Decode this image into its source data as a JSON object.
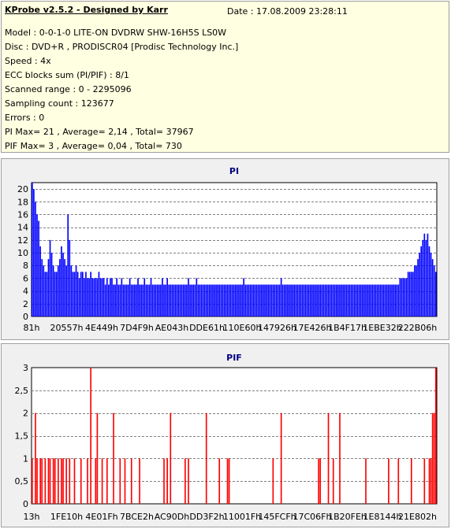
{
  "header": {
    "title": "KProbe v2.5.2 - Designed by Karr",
    "date": "Date : 17.08.2009 23:28:11",
    "lines": [
      "Model : 0-0-1-0 LITE-ON DVDRW SHW-16H5S  LS0W",
      "Disc : DVD+R , PRODISCR04 [Prodisc Technology Inc.]",
      "Speed : 4x",
      "ECC blocks sum (PI/PIF) : 8/1",
      "Scanned range : 0 - 2295096",
      "Sampling count : 123677",
      "Errors : 0",
      "PI Max= 21 , Average= 2,14 , Total= 37967",
      "PIF Max= 3 , Average= 0,04 , Total= 730"
    ]
  },
  "chart_data": [
    {
      "type": "bar",
      "title": "PI",
      "color": "#0000ff",
      "ylim": [
        0,
        21
      ],
      "yticks": [
        0,
        2,
        4,
        6,
        8,
        10,
        12,
        14,
        16,
        18,
        20
      ],
      "ytick_labels": [
        "0",
        "2",
        "4",
        "6",
        "8",
        "10",
        "12",
        "14",
        "16",
        "18",
        "20"
      ],
      "xtick_labels": [
        "81h",
        "20557h",
        "4E449h",
        "7D4F9h",
        "AE043h",
        "DDE61h",
        "110E60h",
        "147926h",
        "17E426h",
        "1B4F17h",
        "1EBE32h",
        "222B06h"
      ],
      "grid": true,
      "values": [
        21,
        20,
        18,
        16,
        15,
        11,
        9,
        8,
        7,
        7,
        9,
        12,
        10,
        8,
        7,
        7,
        8,
        9,
        11,
        10,
        9,
        8,
        16,
        12,
        8,
        7,
        7,
        8,
        7,
        6,
        7,
        7,
        6,
        7,
        6,
        6,
        7,
        6,
        6,
        6,
        6,
        7,
        6,
        6,
        6,
        5,
        6,
        5,
        6,
        6,
        5,
        5,
        6,
        5,
        5,
        6,
        5,
        5,
        5,
        5,
        6,
        5,
        5,
        5,
        5,
        6,
        5,
        5,
        5,
        6,
        5,
        5,
        5,
        6,
        5,
        5,
        5,
        5,
        5,
        5,
        6,
        5,
        5,
        6,
        5,
        5,
        5,
        5,
        5,
        5,
        5,
        5,
        5,
        5,
        5,
        5,
        6,
        5,
        5,
        5,
        5,
        6,
        5,
        5,
        5,
        5,
        5,
        5,
        5,
        5,
        5,
        5,
        5,
        5,
        5,
        5,
        5,
        5,
        5,
        5,
        5,
        5,
        5,
        5,
        5,
        5,
        5,
        5,
        5,
        5,
        6,
        5,
        5,
        5,
        5,
        5,
        5,
        5,
        5,
        5,
        5,
        5,
        5,
        5,
        5,
        5,
        5,
        5,
        5,
        5,
        5,
        5,
        5,
        6,
        5,
        5,
        5,
        5,
        5,
        5,
        5,
        5,
        5,
        5,
        5,
        5,
        5,
        5,
        5,
        5,
        5,
        5,
        5,
        5,
        5,
        5,
        5,
        5,
        5,
        5,
        5,
        5,
        5,
        5,
        5,
        5,
        5,
        5,
        5,
        5,
        5,
        5,
        5,
        5,
        5,
        5,
        5,
        5,
        5,
        5,
        5,
        5,
        5,
        5,
        5,
        5,
        5,
        5,
        5,
        5,
        5,
        5,
        5,
        5,
        5,
        5,
        5,
        5,
        5,
        5,
        5,
        5,
        5,
        5,
        5,
        5,
        6,
        6,
        6,
        6,
        6,
        7,
        7,
        7,
        7,
        8,
        8,
        9,
        10,
        11,
        12,
        13,
        12,
        13,
        11,
        10,
        9,
        8,
        7
      ]
    },
    {
      "type": "bar",
      "title": "PIF",
      "color": "#ff0000",
      "ylim": [
        0,
        3
      ],
      "yticks": [
        0,
        0.5,
        1,
        1.5,
        2,
        2.5,
        3
      ],
      "ytick_labels": [
        "0",
        "0,5",
        "1",
        "1,5",
        "2",
        "2,5",
        "3"
      ],
      "xtick_labels": [
        "13h",
        "1FE10h",
        "4E01Fh",
        "7BCE2h",
        "AC90Dh",
        "DD3F2h",
        "11001Fh",
        "145FCFh",
        "17C06Fh",
        "1B20FEh",
        "1E8144h",
        "21E802h"
      ],
      "grid": true,
      "values": [
        1,
        0,
        2,
        1,
        0,
        1,
        1,
        0,
        1,
        0,
        1,
        1,
        0,
        1,
        1,
        0,
        1,
        0,
        1,
        1,
        0,
        1,
        0,
        1,
        0,
        0,
        1,
        0,
        0,
        0,
        1,
        0,
        0,
        0,
        1,
        0,
        3,
        0,
        0,
        1,
        2,
        0,
        0,
        1,
        0,
        0,
        1,
        0,
        0,
        0,
        2,
        0,
        0,
        0,
        1,
        0,
        0,
        1,
        0,
        0,
        0,
        1,
        0,
        0,
        0,
        0,
        1,
        0,
        0,
        0,
        0,
        0,
        0,
        0,
        0,
        0,
        0,
        0,
        0,
        0,
        0,
        1,
        0,
        1,
        0,
        2,
        0,
        0,
        0,
        0,
        0,
        0,
        0,
        0,
        1,
        0,
        1,
        0,
        0,
        0,
        0,
        0,
        0,
        0,
        0,
        0,
        0,
        2,
        0,
        0,
        0,
        0,
        0,
        0,
        0,
        1,
        0,
        0,
        0,
        0,
        1,
        1,
        0,
        0,
        0,
        0,
        0,
        0,
        0,
        0,
        0,
        0,
        0,
        0,
        0,
        0,
        0,
        0,
        0,
        0,
        0,
        0,
        0,
        0,
        0,
        0,
        0,
        0,
        1,
        0,
        0,
        0,
        0,
        2,
        0,
        0,
        0,
        0,
        0,
        0,
        0,
        0,
        0,
        0,
        0,
        0,
        0,
        0,
        0,
        0,
        0,
        0,
        0,
        0,
        0,
        0,
        1,
        1,
        0,
        0,
        0,
        0,
        2,
        0,
        0,
        1,
        0,
        0,
        0,
        2,
        0,
        0,
        0,
        0,
        0,
        0,
        0,
        0,
        0,
        0,
        0,
        0,
        0,
        0,
        0,
        1,
        0,
        0,
        0,
        0,
        0,
        0,
        0,
        0,
        0,
        0,
        0,
        0,
        0,
        1,
        0,
        0,
        0,
        0,
        0,
        1,
        0,
        0,
        0,
        0,
        0,
        0,
        0,
        1,
        0,
        0,
        0,
        0,
        0,
        0,
        0,
        1,
        0,
        0,
        1,
        1,
        2,
        2,
        3
      ]
    }
  ]
}
